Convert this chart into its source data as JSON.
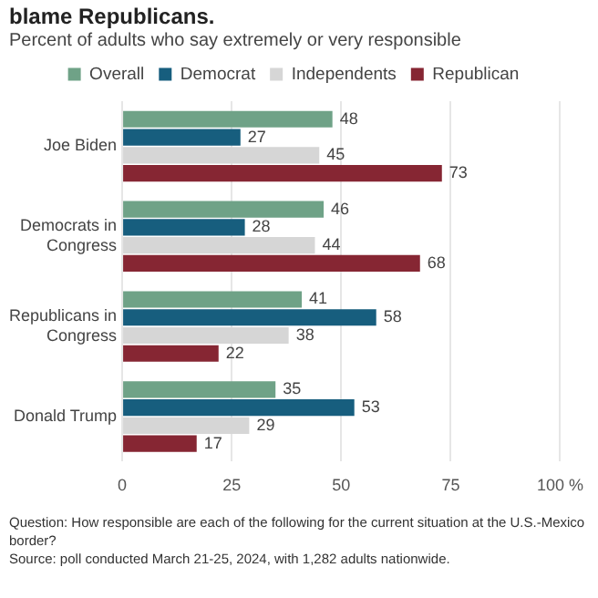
{
  "chart_data": {
    "type": "bar",
    "orientation": "horizontal",
    "title": "blame Republicans.",
    "subtitle": "Percent of adults who say extremely or very responsible",
    "categories": [
      "Joe Biden",
      "Democrats in Congress",
      "Republicans in Congress",
      "Donald Trump"
    ],
    "series": [
      {
        "name": "Overall",
        "color": "#6fa287",
        "values": [
          48,
          46,
          41,
          35
        ]
      },
      {
        "name": "Democrat",
        "color": "#175e7e",
        "values": [
          27,
          28,
          58,
          53
        ]
      },
      {
        "name": "Independents",
        "color": "#d6d6d6",
        "values": [
          45,
          44,
          38,
          29
        ]
      },
      {
        "name": "Republican",
        "color": "#862633",
        "values": [
          73,
          68,
          22,
          17
        ]
      }
    ],
    "xlim": [
      0,
      100
    ],
    "xticks": [
      0,
      25,
      50,
      75,
      {
        "value": 100,
        "label": "100 %"
      }
    ],
    "grid": "x",
    "legend": "top",
    "data_labels": true,
    "annotations": [
      "Question: How responsible are each of the following for the current situation at the U.S.-Mexico border?",
      "Source: poll conducted March 21-25, 2024, with 1,282 adults nationwide."
    ]
  }
}
